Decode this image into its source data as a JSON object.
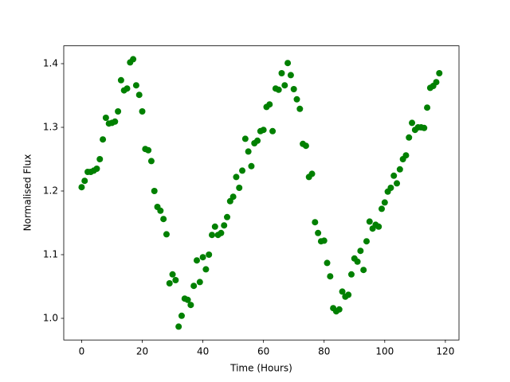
{
  "chart_data": {
    "type": "scatter",
    "xlabel": "Time (Hours)",
    "ylabel": "Normalised Flux",
    "color": "#008000",
    "x": [
      0,
      1,
      2,
      3,
      4,
      5,
      6,
      7,
      8,
      9,
      10,
      11,
      12,
      13,
      14,
      15,
      16,
      17,
      18,
      19,
      20,
      21,
      22,
      23,
      24,
      25,
      26,
      27,
      28,
      29,
      30,
      31,
      32,
      33,
      34,
      35,
      36,
      37,
      38,
      39,
      40,
      41,
      42,
      43,
      44,
      45,
      46,
      47,
      48,
      49,
      50,
      51,
      52,
      53,
      54,
      55,
      56,
      57,
      58,
      59,
      60,
      61,
      62,
      63,
      64,
      65,
      66,
      67,
      68,
      69,
      70,
      71,
      72,
      73,
      74,
      75,
      76,
      77,
      78,
      79,
      80,
      81,
      82,
      83,
      84,
      85,
      86,
      87,
      88,
      89,
      90,
      91,
      92,
      93,
      94,
      95,
      96,
      97,
      98,
      99,
      100,
      101,
      102,
      103,
      104,
      105,
      106,
      107,
      108,
      109,
      110,
      111,
      112,
      113,
      114,
      115,
      116,
      117,
      118
    ],
    "values": [
      1.206,
      1.216,
      1.23,
      1.23,
      1.232,
      1.235,
      1.25,
      1.281,
      1.315,
      1.306,
      1.307,
      1.309,
      1.325,
      1.374,
      1.358,
      1.361,
      1.402,
      1.407,
      1.366,
      1.351,
      1.325,
      1.266,
      1.264,
      1.247,
      1.2,
      1.175,
      1.169,
      1.156,
      1.132,
      1.055,
      1.069,
      1.06,
      0.987,
      1.004,
      1.031,
      1.029,
      1.021,
      1.051,
      1.091,
      1.057,
      1.096,
      1.077,
      1.1,
      1.131,
      1.144,
      1.131,
      1.134,
      1.146,
      1.159,
      1.184,
      1.191,
      1.222,
      1.205,
      1.232,
      1.282,
      1.262,
      1.239,
      1.275,
      1.279,
      1.294,
      1.296,
      1.332,
      1.336,
      1.294,
      1.361,
      1.359,
      1.385,
      1.366,
      1.401,
      1.382,
      1.36,
      1.344,
      1.329,
      1.274,
      1.271,
      1.222,
      1.227,
      1.151,
      1.134,
      1.121,
      1.122,
      1.087,
      1.066,
      1.016,
      1.011,
      1.014,
      1.042,
      1.034,
      1.037,
      1.069,
      1.094,
      1.089,
      1.106,
      1.076,
      1.121,
      1.152,
      1.141,
      1.147,
      1.144,
      1.172,
      1.182,
      1.199,
      1.205,
      1.224,
      1.212,
      1.234,
      1.25,
      1.256,
      1.284,
      1.307,
      1.296,
      1.3,
      1.3,
      1.299,
      1.331,
      1.362,
      1.365,
      1.371,
      1.385
    ],
    "xlim": [
      -5.9,
      124.5
    ],
    "xticks": [
      0,
      20,
      40,
      60,
      80,
      100,
      120
    ],
    "ylim": [
      0.966,
      1.428
    ],
    "yticks": [
      {
        "value": 1,
        "label": "1.0"
      },
      1.1,
      1.2,
      1.3,
      1.4
    ]
  }
}
